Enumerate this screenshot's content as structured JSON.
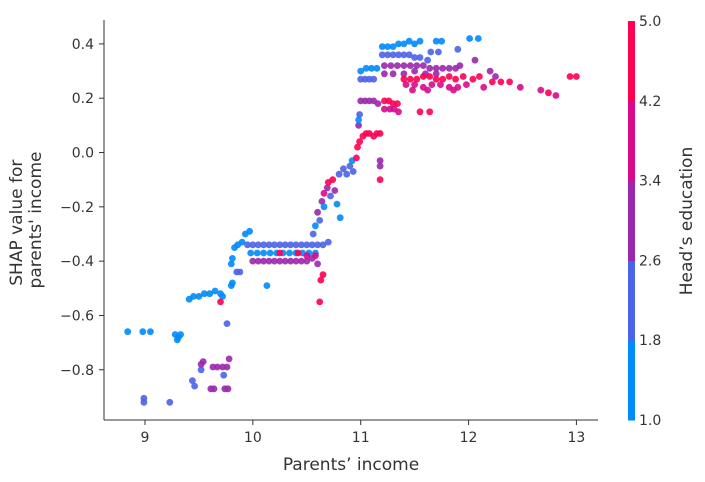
{
  "chart_data": {
    "type": "scatter",
    "xlabel": "Parents’ income",
    "ylabel_lines": [
      "SHAP value for",
      "parents' income"
    ],
    "xlim": [
      8.62,
      13.2
    ],
    "ylim": [
      -0.985,
      0.488
    ],
    "x_ticks": [
      9,
      10,
      11,
      12,
      13
    ],
    "x_tick_labels": [
      "9",
      "10",
      "11",
      "12",
      "13"
    ],
    "y_ticks": [
      0.4,
      0.2,
      0.0,
      -0.2,
      -0.4,
      -0.6,
      -0.8
    ],
    "y_tick_labels": [
      "0.4",
      "0.2",
      "0.0",
      "−0.2",
      "−0.4",
      "−0.6",
      "−0.8"
    ],
    "grid": false,
    "colorbar": {
      "label": "Head’s education",
      "range": [
        1.0,
        5.0
      ],
      "tick_values": [
        5.0,
        4.2,
        3.4,
        2.6,
        1.8,
        1.0
      ],
      "tick_labels": [
        "5.0",
        "4.2",
        "3.4",
        "2.6",
        "1.8",
        "1.0"
      ],
      "colors": [
        "#008bfb",
        "#4b63e6",
        "#9b27ad",
        "#d70a8c",
        "#ff0052"
      ]
    },
    "point_fields": [
      "parents_income",
      "shap_value",
      "heads_education"
    ],
    "points": [
      [
        8.84,
        -0.66,
        1
      ],
      [
        8.98,
        -0.66,
        1
      ],
      [
        9.05,
        -0.66,
        1
      ],
      [
        8.99,
        -0.905,
        2
      ],
      [
        8.99,
        -0.92,
        2
      ],
      [
        9.23,
        -0.92,
        2
      ],
      [
        9.28,
        -0.67,
        1
      ],
      [
        9.31,
        -0.68,
        1
      ],
      [
        9.33,
        -0.67,
        1
      ],
      [
        9.3,
        -0.69,
        1
      ],
      [
        9.44,
        -0.84,
        2
      ],
      [
        9.46,
        -0.86,
        2
      ],
      [
        9.52,
        -0.8,
        2
      ],
      [
        9.52,
        -0.78,
        3
      ],
      [
        9.54,
        -0.77,
        3
      ],
      [
        9.63,
        -0.79,
        3
      ],
      [
        9.67,
        -0.79,
        3
      ],
      [
        9.72,
        -0.79,
        3
      ],
      [
        9.76,
        -0.79,
        3
      ],
      [
        9.61,
        -0.87,
        3
      ],
      [
        9.64,
        -0.87,
        3
      ],
      [
        9.74,
        -0.87,
        3
      ],
      [
        9.77,
        -0.87,
        3
      ],
      [
        9.73,
        -0.82,
        2
      ],
      [
        9.78,
        -0.76,
        3
      ],
      [
        9.76,
        -0.63,
        2
      ],
      [
        9.41,
        -0.54,
        1
      ],
      [
        9.45,
        -0.53,
        1
      ],
      [
        9.5,
        -0.53,
        1
      ],
      [
        9.55,
        -0.52,
        1
      ],
      [
        9.6,
        -0.52,
        1
      ],
      [
        9.65,
        -0.51,
        1
      ],
      [
        9.7,
        -0.52,
        1
      ],
      [
        9.72,
        -0.53,
        1
      ],
      [
        9.7,
        -0.55,
        5
      ],
      [
        9.8,
        -0.49,
        1
      ],
      [
        9.81,
        -0.48,
        1
      ],
      [
        9.85,
        -0.44,
        2
      ],
      [
        9.88,
        -0.44,
        2
      ],
      [
        9.8,
        -0.41,
        1
      ],
      [
        9.81,
        -0.39,
        1
      ],
      [
        9.83,
        -0.35,
        1
      ],
      [
        9.86,
        -0.34,
        1
      ],
      [
        9.9,
        -0.33,
        1
      ],
      [
        9.93,
        -0.3,
        1
      ],
      [
        9.97,
        -0.29,
        1
      ],
      [
        9.95,
        -0.34,
        2
      ],
      [
        10.0,
        -0.34,
        2
      ],
      [
        10.05,
        -0.34,
        2
      ],
      [
        10.1,
        -0.34,
        2
      ],
      [
        10.15,
        -0.34,
        2
      ],
      [
        10.2,
        -0.34,
        2
      ],
      [
        10.25,
        -0.34,
        2
      ],
      [
        10.3,
        -0.34,
        2
      ],
      [
        10.35,
        -0.34,
        2
      ],
      [
        10.4,
        -0.34,
        2
      ],
      [
        10.45,
        -0.34,
        2
      ],
      [
        10.5,
        -0.34,
        2
      ],
      [
        10.55,
        -0.34,
        2
      ],
      [
        10.6,
        -0.34,
        2
      ],
      [
        10.65,
        -0.34,
        2
      ],
      [
        10.7,
        -0.33,
        2
      ],
      [
        9.98,
        -0.37,
        1
      ],
      [
        10.04,
        -0.37,
        1
      ],
      [
        10.1,
        -0.37,
        1
      ],
      [
        10.16,
        -0.37,
        1
      ],
      [
        10.22,
        -0.37,
        1
      ],
      [
        10.28,
        -0.37,
        1
      ],
      [
        10.34,
        -0.37,
        1
      ],
      [
        10.4,
        -0.37,
        1
      ],
      [
        10.46,
        -0.37,
        1
      ],
      [
        10.52,
        -0.37,
        1
      ],
      [
        10.58,
        -0.37,
        1
      ],
      [
        10.0,
        -0.4,
        3
      ],
      [
        10.05,
        -0.4,
        3
      ],
      [
        10.1,
        -0.4,
        3
      ],
      [
        10.15,
        -0.4,
        3
      ],
      [
        10.2,
        -0.4,
        3
      ],
      [
        10.25,
        -0.4,
        3
      ],
      [
        10.3,
        -0.4,
        3
      ],
      [
        10.35,
        -0.4,
        3
      ],
      [
        10.4,
        -0.4,
        3
      ],
      [
        10.45,
        -0.4,
        3
      ],
      [
        10.5,
        -0.4,
        3
      ],
      [
        10.55,
        -0.39,
        3
      ],
      [
        10.25,
        -0.37,
        5
      ],
      [
        10.42,
        -0.37,
        5
      ],
      [
        10.58,
        -0.38,
        4
      ],
      [
        10.5,
        -0.38,
        4
      ],
      [
        10.13,
        -0.49,
        1
      ],
      [
        10.63,
        -0.47,
        5
      ],
      [
        10.62,
        -0.55,
        5
      ],
      [
        10.6,
        -0.41,
        3
      ],
      [
        10.65,
        -0.45,
        5
      ],
      [
        10.56,
        -0.3,
        2
      ],
      [
        10.58,
        -0.27,
        1
      ],
      [
        10.6,
        -0.22,
        3
      ],
      [
        10.62,
        -0.25,
        2
      ],
      [
        10.64,
        -0.18,
        3
      ],
      [
        10.66,
        -0.2,
        1
      ],
      [
        10.66,
        -0.15,
        4
      ],
      [
        10.69,
        -0.13,
        3
      ],
      [
        10.7,
        -0.11,
        5
      ],
      [
        10.72,
        -0.16,
        2
      ],
      [
        10.74,
        -0.1,
        5
      ],
      [
        10.76,
        -0.14,
        3
      ],
      [
        10.78,
        -0.19,
        1
      ],
      [
        10.81,
        -0.24,
        1
      ],
      [
        10.8,
        -0.08,
        2
      ],
      [
        10.84,
        -0.06,
        2
      ],
      [
        10.87,
        -0.08,
        2
      ],
      [
        10.9,
        -0.05,
        2
      ],
      [
        10.93,
        -0.07,
        2
      ],
      [
        10.92,
        -0.03,
        1
      ],
      [
        10.96,
        -0.02,
        5
      ],
      [
        10.97,
        0.02,
        5
      ],
      [
        10.99,
        0.04,
        5
      ],
      [
        11.02,
        0.06,
        5
      ],
      [
        11.05,
        0.07,
        5
      ],
      [
        11.08,
        0.07,
        5
      ],
      [
        11.12,
        0.06,
        5
      ],
      [
        11.15,
        0.07,
        5
      ],
      [
        11.18,
        0.07,
        5
      ],
      [
        11.18,
        -0.03,
        3
      ],
      [
        11.18,
        -0.1,
        5
      ],
      [
        11.18,
        -0.05,
        3
      ],
      [
        10.98,
        0.1,
        3
      ],
      [
        10.99,
        0.14,
        2
      ],
      [
        10.98,
        0.12,
        1
      ],
      [
        11.0,
        0.19,
        3
      ],
      [
        11.04,
        0.19,
        3
      ],
      [
        11.08,
        0.19,
        3
      ],
      [
        11.12,
        0.19,
        3
      ],
      [
        11.16,
        0.18,
        3
      ],
      [
        11.22,
        0.19,
        5
      ],
      [
        11.26,
        0.19,
        5
      ],
      [
        11.3,
        0.18,
        5
      ],
      [
        11.34,
        0.18,
        5
      ],
      [
        11.22,
        0.16,
        4
      ],
      [
        11.27,
        0.16,
        4
      ],
      [
        11.31,
        0.16,
        4
      ],
      [
        11.35,
        0.15,
        4
      ],
      [
        11.55,
        0.15,
        5
      ],
      [
        11.0,
        0.27,
        2
      ],
      [
        11.04,
        0.27,
        2
      ],
      [
        11.08,
        0.27,
        2
      ],
      [
        11.12,
        0.27,
        2
      ],
      [
        11.0,
        0.3,
        1
      ],
      [
        11.05,
        0.31,
        1
      ],
      [
        11.1,
        0.31,
        1
      ],
      [
        11.15,
        0.31,
        1
      ],
      [
        11.2,
        0.36,
        2
      ],
      [
        11.25,
        0.36,
        2
      ],
      [
        11.3,
        0.36,
        2
      ],
      [
        11.35,
        0.36,
        2
      ],
      [
        11.4,
        0.36,
        2
      ],
      [
        11.45,
        0.36,
        2
      ],
      [
        11.5,
        0.35,
        2
      ],
      [
        11.55,
        0.35,
        2
      ],
      [
        11.62,
        0.34,
        2
      ],
      [
        11.65,
        0.37,
        2
      ],
      [
        11.72,
        0.37,
        2
      ],
      [
        11.9,
        0.38,
        2
      ],
      [
        11.2,
        0.39,
        1
      ],
      [
        11.25,
        0.39,
        1
      ],
      [
        11.3,
        0.39,
        1
      ],
      [
        11.35,
        0.4,
        1
      ],
      [
        11.4,
        0.4,
        1
      ],
      [
        11.45,
        0.41,
        1
      ],
      [
        11.5,
        0.4,
        1
      ],
      [
        11.55,
        0.41,
        1
      ],
      [
        11.7,
        0.41,
        1
      ],
      [
        11.75,
        0.41,
        1
      ],
      [
        12.01,
        0.42,
        1
      ],
      [
        12.09,
        0.42,
        1
      ],
      [
        11.22,
        0.32,
        3
      ],
      [
        11.28,
        0.32,
        3
      ],
      [
        11.34,
        0.32,
        3
      ],
      [
        11.4,
        0.32,
        3
      ],
      [
        11.46,
        0.32,
        3
      ],
      [
        11.52,
        0.32,
        3
      ],
      [
        11.58,
        0.32,
        3
      ],
      [
        11.64,
        0.31,
        3
      ],
      [
        11.7,
        0.31,
        3
      ],
      [
        11.76,
        0.31,
        3
      ],
      [
        11.82,
        0.31,
        3
      ],
      [
        11.88,
        0.31,
        3
      ],
      [
        11.22,
        0.29,
        3
      ],
      [
        11.3,
        0.29,
        3
      ],
      [
        11.4,
        0.29,
        3
      ],
      [
        11.5,
        0.3,
        3
      ],
      [
        11.6,
        0.29,
        3
      ],
      [
        11.7,
        0.29,
        3
      ],
      [
        11.92,
        0.32,
        3
      ],
      [
        12.06,
        0.34,
        3
      ],
      [
        12.2,
        0.3,
        3
      ],
      [
        12.25,
        0.28,
        3
      ],
      [
        11.4,
        0.27,
        5
      ],
      [
        11.46,
        0.27,
        5
      ],
      [
        11.52,
        0.27,
        5
      ],
      [
        11.58,
        0.28,
        5
      ],
      [
        11.64,
        0.28,
        5
      ],
      [
        11.7,
        0.27,
        5
      ],
      [
        11.76,
        0.27,
        5
      ],
      [
        11.82,
        0.28,
        5
      ],
      [
        11.88,
        0.27,
        5
      ],
      [
        11.95,
        0.28,
        5
      ],
      [
        12.04,
        0.27,
        5
      ],
      [
        12.1,
        0.28,
        5
      ],
      [
        11.42,
        0.25,
        4
      ],
      [
        11.5,
        0.25,
        4
      ],
      [
        11.58,
        0.24,
        4
      ],
      [
        11.66,
        0.25,
        4
      ],
      [
        11.74,
        0.25,
        4
      ],
      [
        11.82,
        0.24,
        4
      ],
      [
        11.9,
        0.24,
        4
      ],
      [
        11.98,
        0.25,
        4
      ],
      [
        11.48,
        0.23,
        4
      ],
      [
        11.62,
        0.23,
        4
      ],
      [
        11.86,
        0.23,
        4
      ],
      [
        12.14,
        0.24,
        4
      ],
      [
        12.22,
        0.26,
        5
      ],
      [
        12.3,
        0.26,
        5
      ],
      [
        12.38,
        0.26,
        5
      ],
      [
        12.48,
        0.24,
        4
      ],
      [
        12.67,
        0.23,
        4
      ],
      [
        12.74,
        0.22,
        5
      ],
      [
        12.81,
        0.21,
        4
      ],
      [
        12.94,
        0.28,
        5
      ],
      [
        13.0,
        0.28,
        5
      ],
      [
        11.64,
        0.15,
        5
      ]
    ]
  }
}
